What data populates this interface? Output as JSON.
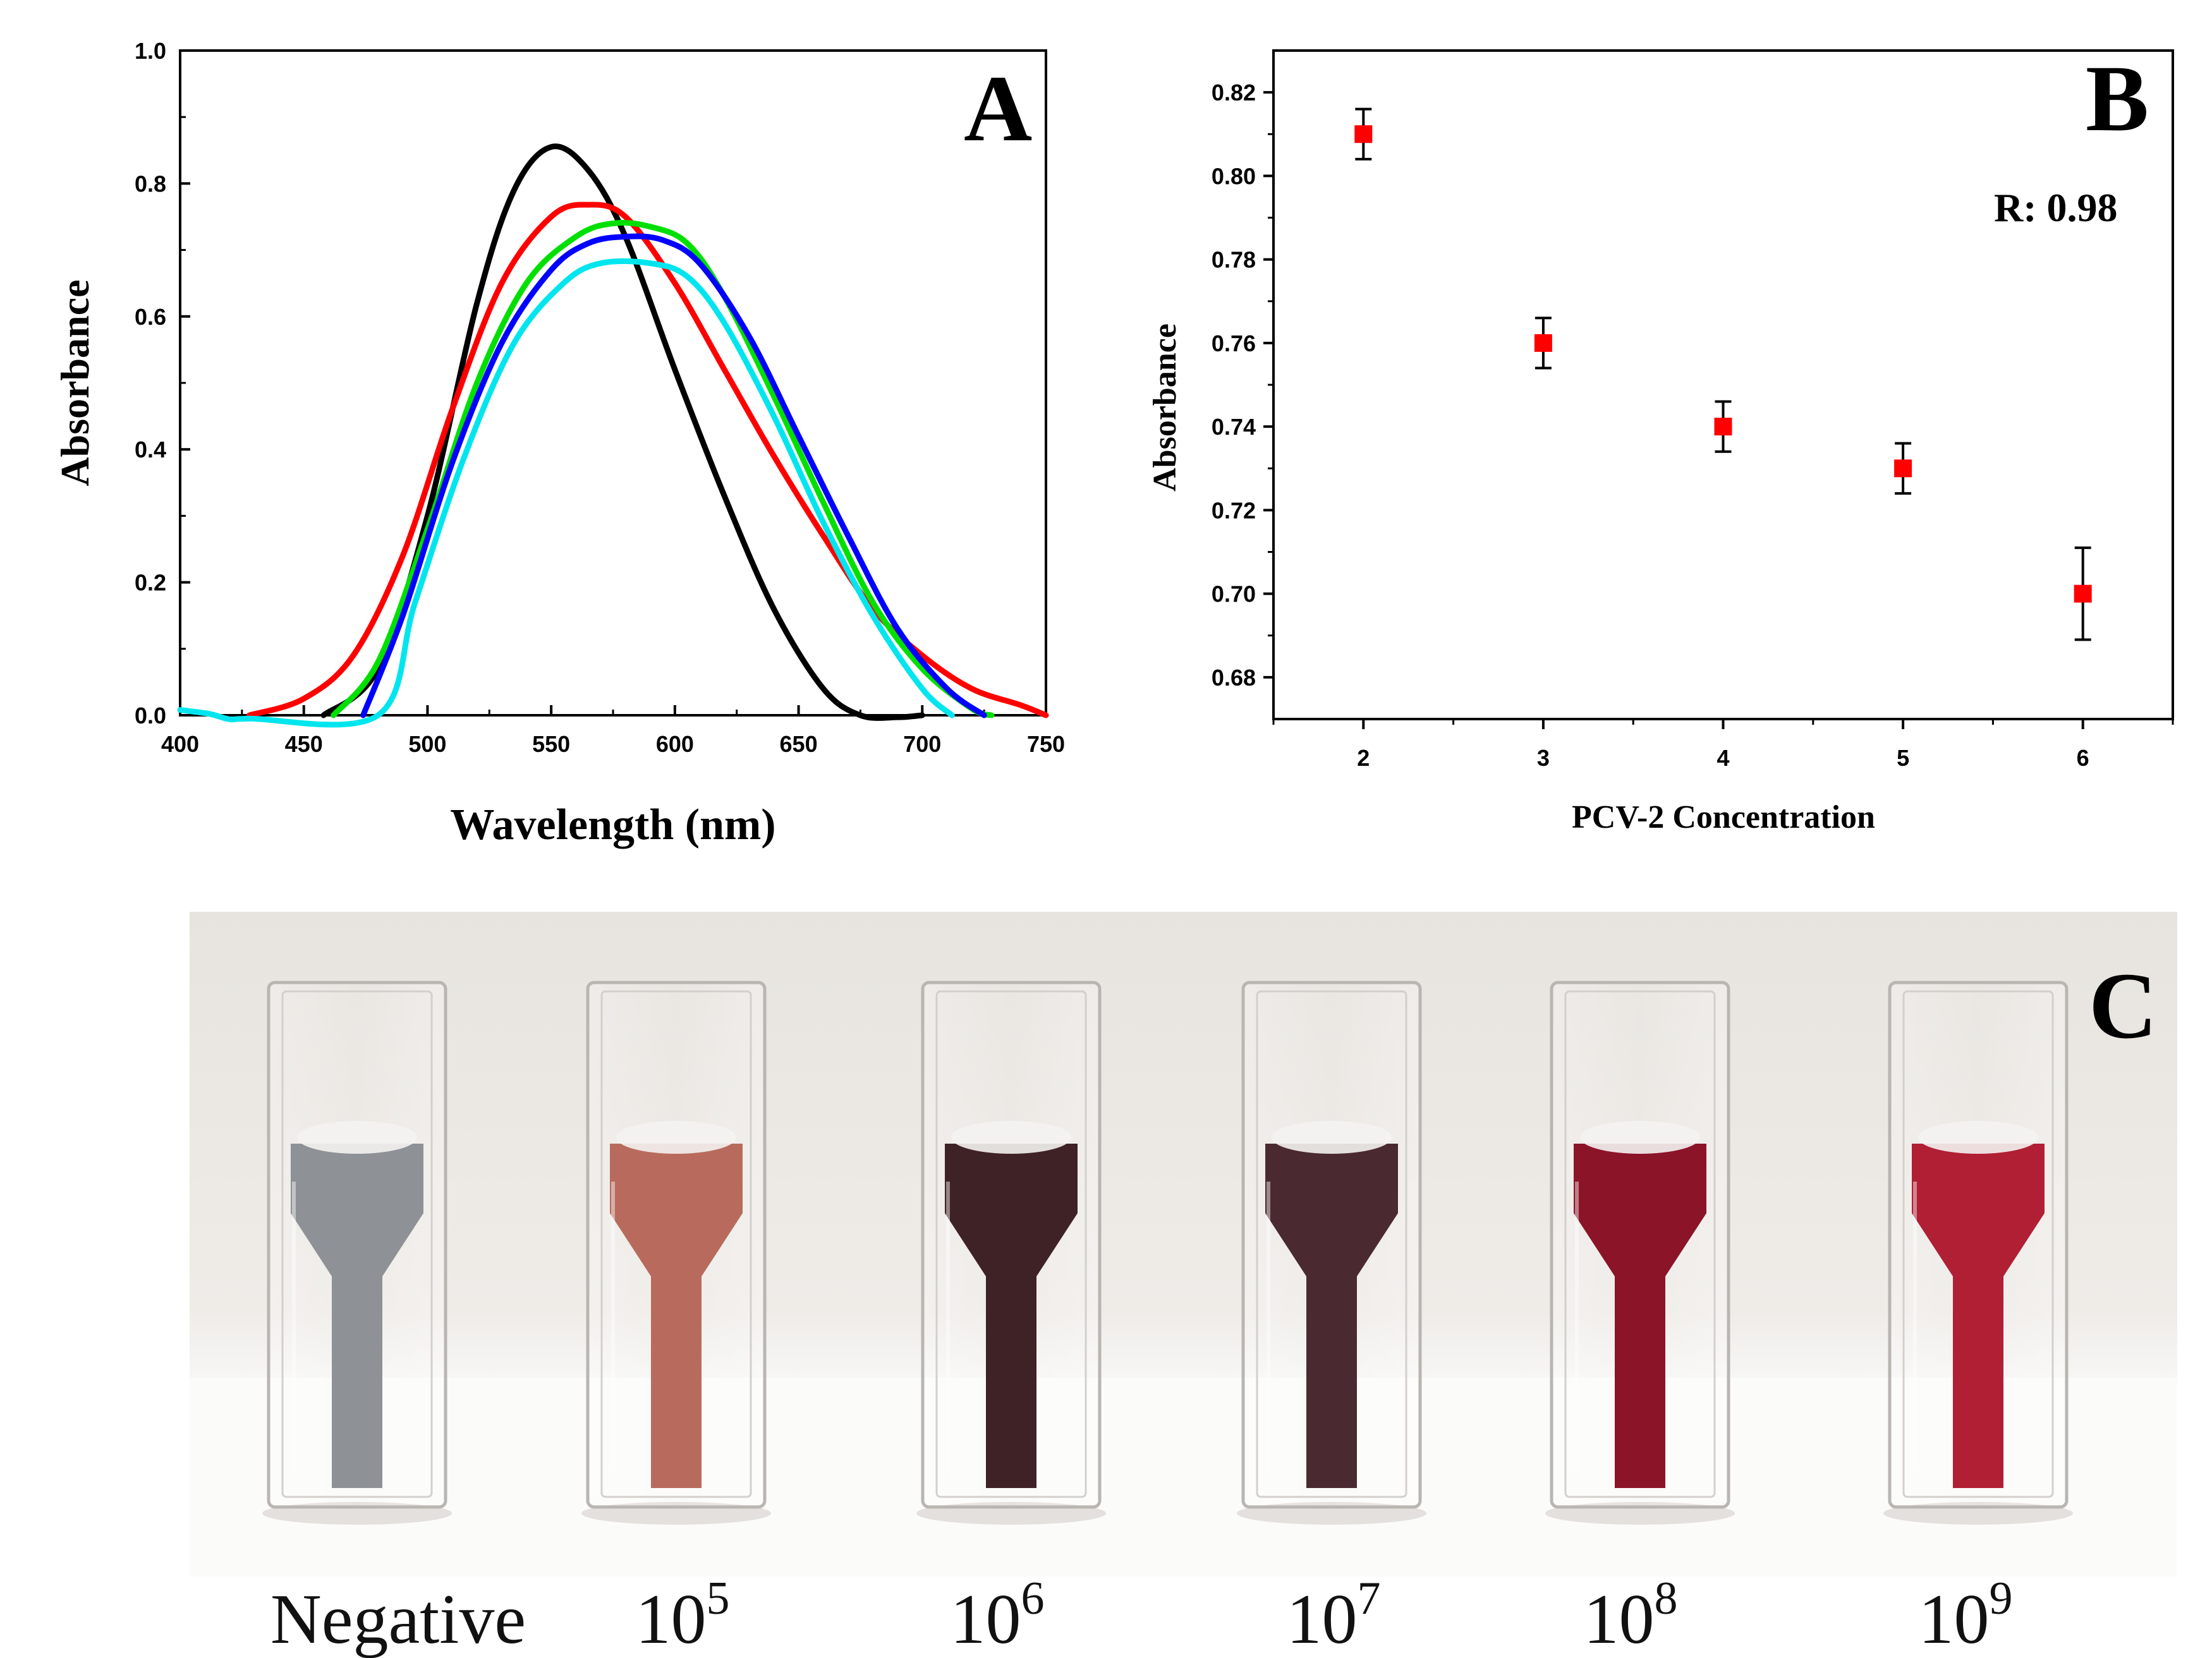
{
  "chart_data": [
    {
      "panel": "A",
      "type": "line",
      "xlabel": "Wavelength (nm)",
      "ylabel": "Absorbance",
      "xlim": [
        400,
        750
      ],
      "ylim": [
        0.0,
        1.0
      ],
      "x_ticks": [
        400,
        450,
        500,
        550,
        600,
        650,
        700,
        750
      ],
      "y_ticks": [
        "0.0",
        "0.2",
        "0.4",
        "0.6",
        "0.8",
        "1.0"
      ],
      "series": [
        {
          "name": "Negative",
          "color": "#000000",
          "x": [
            458,
            480,
            500,
            520,
            535,
            550,
            565,
            580,
            600,
            620,
            640,
            660,
            675,
            690,
            700
          ],
          "y": [
            0.0,
            0.07,
            0.3,
            0.62,
            0.79,
            0.855,
            0.82,
            0.72,
            0.52,
            0.33,
            0.16,
            0.04,
            0.0,
            -0.003,
            0.0
          ]
        },
        {
          "name": "10^5",
          "color": "#ff0000",
          "x": [
            428,
            450,
            470,
            490,
            510,
            530,
            550,
            565,
            580,
            600,
            620,
            640,
            660,
            680,
            700,
            720,
            740,
            750
          ],
          "y": [
            0.0,
            0.025,
            0.09,
            0.24,
            0.46,
            0.65,
            0.75,
            0.768,
            0.75,
            0.65,
            0.52,
            0.39,
            0.27,
            0.16,
            0.09,
            0.04,
            0.015,
            0.0
          ]
        },
        {
          "name": "10^6",
          "color": "#00e000",
          "x": [
            462,
            480,
            500,
            520,
            540,
            560,
            575,
            590,
            605,
            620,
            640,
            660,
            680,
            700,
            720,
            728
          ],
          "y": [
            0.0,
            0.08,
            0.28,
            0.5,
            0.65,
            0.72,
            0.74,
            0.735,
            0.71,
            0.63,
            0.48,
            0.32,
            0.17,
            0.07,
            0.01,
            0.0
          ]
        },
        {
          "name": "10^7",
          "color": "#0000ff",
          "x": [
            474,
            490,
            510,
            530,
            550,
            565,
            580,
            595,
            610,
            630,
            650,
            670,
            690,
            710,
            725
          ],
          "y": [
            0.0,
            0.15,
            0.38,
            0.56,
            0.67,
            0.71,
            0.72,
            0.715,
            0.68,
            0.57,
            0.42,
            0.27,
            0.13,
            0.04,
            0.0
          ]
        },
        {
          "name": "10^8",
          "color": "#00e5ee",
          "x": [
            400,
            412,
            420,
            428,
            480,
            495,
            515,
            535,
            555,
            570,
            590,
            605,
            620,
            640,
            660,
            680,
            700,
            712
          ],
          "y": [
            0.008,
            0.002,
            -0.006,
            -0.005,
            0.0,
            0.17,
            0.39,
            0.56,
            0.65,
            0.68,
            0.68,
            0.66,
            0.59,
            0.45,
            0.29,
            0.15,
            0.04,
            0.0
          ]
        }
      ]
    },
    {
      "panel": "B",
      "type": "scatter",
      "xlabel": "PCV-2 Concentration",
      "ylabel": "Absorbance",
      "xlim": [
        1.5,
        6.5
      ],
      "ylim": [
        0.67,
        0.83
      ],
      "x_ticks": [
        2,
        3,
        4,
        5,
        6
      ],
      "y_ticks": [
        "0.68",
        "0.70",
        "0.72",
        "0.74",
        "0.76",
        "0.78",
        "0.80",
        "0.82"
      ],
      "marker_color": "#ff0000",
      "x": [
        2,
        3,
        4,
        5,
        6
      ],
      "y": [
        0.81,
        0.76,
        0.74,
        0.73,
        0.7
      ],
      "error": [
        0.006,
        0.006,
        0.006,
        0.006,
        0.011
      ],
      "annotation": "R: 0.98"
    }
  ],
  "panels": {
    "a": "A",
    "b": "B",
    "c": "C"
  },
  "photo": {
    "cuvettes": [
      {
        "label": "Negative",
        "liquid": "#8e9296"
      },
      {
        "label": "10",
        "sup": "5",
        "liquid": "#b86b5c"
      },
      {
        "label": "10",
        "sup": "6",
        "liquid": "#3f2226"
      },
      {
        "label": "10",
        "sup": "7",
        "liquid": "#4a2a30"
      },
      {
        "label": "10",
        "sup": "8",
        "liquid": "#8c1428"
      },
      {
        "label": "10",
        "sup": "9",
        "liquid": "#b11f34"
      }
    ]
  }
}
